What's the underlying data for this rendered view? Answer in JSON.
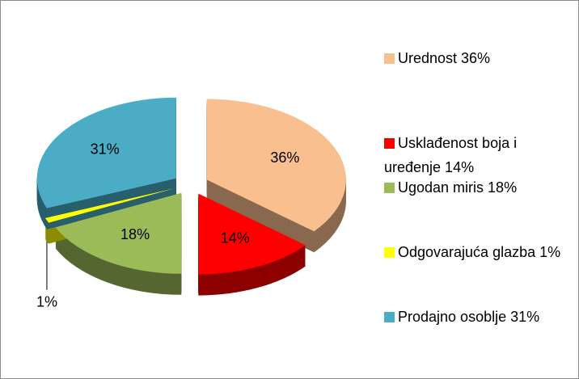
{
  "chart_data": {
    "type": "pie",
    "categories": [
      "Urednost 36%",
      "Usklađenost boja i uređenje 14%",
      "Ugodan miris 18%",
      "Odgovarajuća glazba 1%",
      "Prodajno osoblje 31%"
    ],
    "values": [
      36,
      14,
      18,
      1,
      31
    ],
    "value_labels": [
      "36%",
      "14%",
      "18%",
      "1%",
      "31%"
    ],
    "colors": [
      "#f9bf8f",
      "#ff0000",
      "#9bbb59",
      "#ffff00",
      "#4bacc6"
    ],
    "legend": "right"
  }
}
